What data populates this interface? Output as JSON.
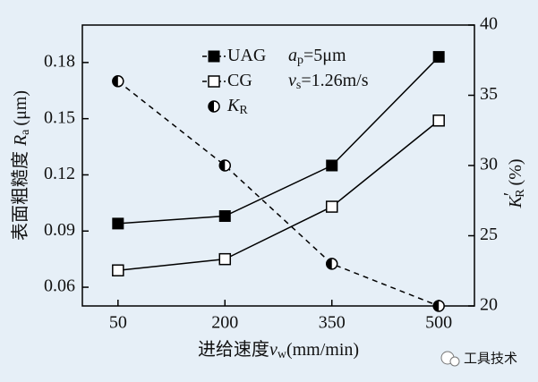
{
  "chart_data": {
    "type": "line",
    "x": [
      50,
      200,
      350,
      500
    ],
    "xlim": [
      0,
      550
    ],
    "xticks": [
      50,
      200,
      350,
      500
    ],
    "ylim": [
      0.05,
      0.2
    ],
    "yticks": [
      0.06,
      0.09,
      0.12,
      0.15,
      0.18
    ],
    "y2lim": [
      20,
      40
    ],
    "y2ticks": [
      20,
      25,
      30,
      35,
      40
    ],
    "x_label": {
      "text": "进给速度",
      "var": "v",
      "sub": "w",
      "unit": "(mm/min)"
    },
    "y_label": {
      "text": "表面粗糙度",
      "var": "R",
      "sub": "a",
      "unit": "(μm)"
    },
    "y2_label": {
      "var": "K",
      "prime": "′",
      "sub": "R",
      "unit": "(%)"
    },
    "annotations": [
      {
        "var": "a",
        "sub": "p",
        "text": "=5μm"
      },
      {
        "var": "v",
        "sub": "s",
        "text": "=1.26m/s"
      }
    ],
    "watermark": "工具技术",
    "series": [
      {
        "name": "UAG",
        "color": "#000000",
        "marker": "filled-square",
        "values": [
          0.094,
          0.098,
          0.125,
          0.183
        ]
      },
      {
        "name": "CG",
        "color": "#000000",
        "marker": "open-square",
        "values": [
          0.069,
          0.075,
          0.103,
          0.149
        ]
      },
      {
        "name": "K",
        "subscript": "R",
        "color": "#000000",
        "marker": "half-circle",
        "dashed": true,
        "axis": "y2",
        "values": [
          36,
          30,
          23,
          20
        ]
      }
    ]
  }
}
